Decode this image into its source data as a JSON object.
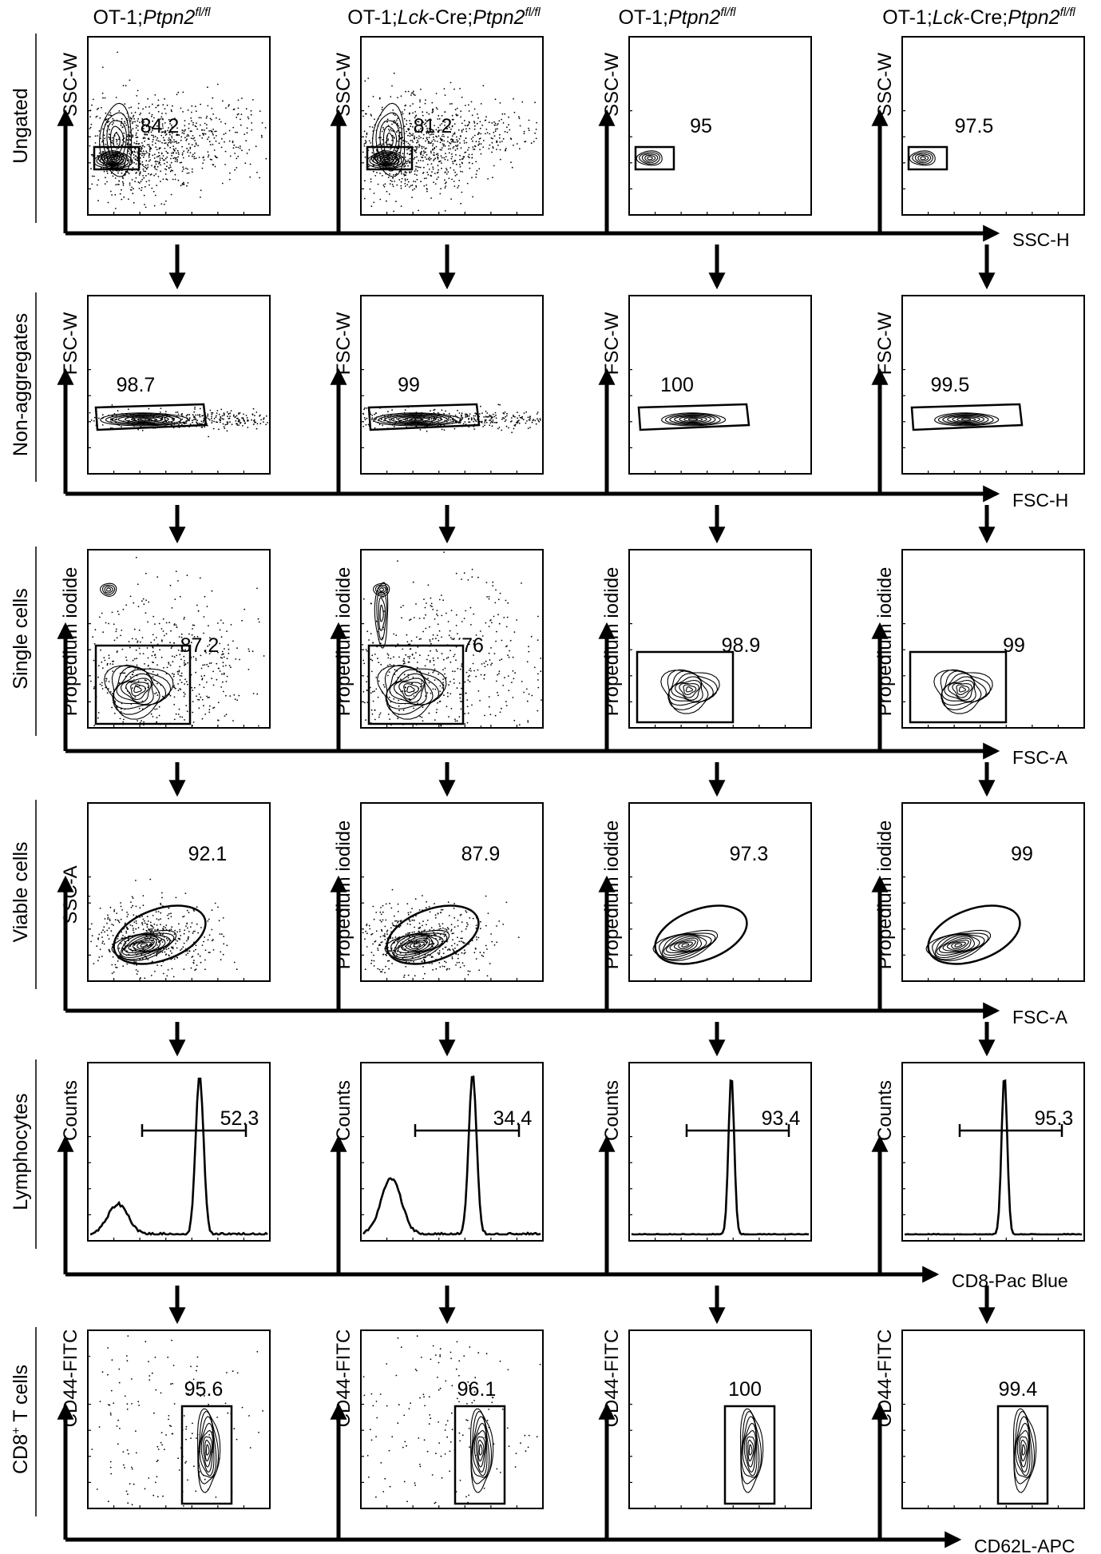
{
  "columns": [
    {
      "prefix": "OT-1;",
      "lck": "",
      "cre": "",
      "gene": "Ptpn2",
      "sup": "fl/fl"
    },
    {
      "prefix": "OT-1;",
      "lck": "Lck",
      "cre": "-Cre;",
      "gene": "Ptpn2",
      "sup": "fl/fl"
    },
    {
      "prefix": "OT-1;",
      "lck": "",
      "cre": "",
      "gene": "Ptpn2",
      "sup": "fl/fl"
    },
    {
      "prefix": "OT-1;",
      "lck": "Lck",
      "cre": "-Cre;",
      "gene": "Ptpn2",
      "sup": "fl/fl"
    }
  ],
  "rows": [
    {
      "label": "Ungated",
      "label_sup": "",
      "label_rest": "",
      "xaxis": "SSC-H",
      "ylabels": [
        "SSC-W",
        "SSC-W",
        "SSC-W",
        "SSC-W"
      ],
      "values": [
        "84.2",
        "81.2",
        "95",
        "97.5"
      ],
      "plot": "scatter-small"
    },
    {
      "label": "Non-aggregates",
      "label_sup": "",
      "label_rest": "",
      "xaxis": "FSC-H",
      "ylabels": [
        "FSC-W",
        "FSC-W",
        "FSC-W",
        "FSC-W"
      ],
      "values": [
        "98.7",
        "99",
        "100",
        "99.5"
      ],
      "plot": "band"
    },
    {
      "label": "Single cells",
      "label_sup": "",
      "label_rest": "",
      "xaxis": "FSC-A",
      "ylabels": [
        "Propedium iodide",
        "Propedium iodide",
        "Propedium iodide",
        "Propedium iodide"
      ],
      "values": [
        "87.2",
        "76",
        "98.9",
        "99"
      ],
      "plot": "pi-rect"
    },
    {
      "label": "Viable cells",
      "label_sup": "",
      "label_rest": "",
      "xaxis": "FSC-A",
      "ylabels": [
        "SSC-A",
        "Propedium iodide",
        "Propedium iodide",
        "Propedium iodide"
      ],
      "values": [
        "92.1",
        "87.9",
        "97.3",
        "99"
      ],
      "plot": "ellipse"
    },
    {
      "label": "Lymphocytes",
      "label_sup": "",
      "label_rest": "",
      "xaxis": "CD8-Pac Blue",
      "ylabels": [
        "Counts",
        "Counts",
        "Counts",
        "Counts"
      ],
      "values": [
        "52.3",
        "34.4",
        "93.4",
        "95.3"
      ],
      "plot": "histogram"
    },
    {
      "label": "CD8",
      "label_sup": "+",
      "label_rest": " T cells",
      "xaxis": "CD62L-APC",
      "ylabels": [
        "CD44-FITC",
        "CD44-FITC",
        "CD44-FITC",
        "CD44-FITC"
      ],
      "values": [
        "95.6",
        "96.1",
        "100",
        "99.4"
      ],
      "plot": "tall-rect"
    }
  ]
}
